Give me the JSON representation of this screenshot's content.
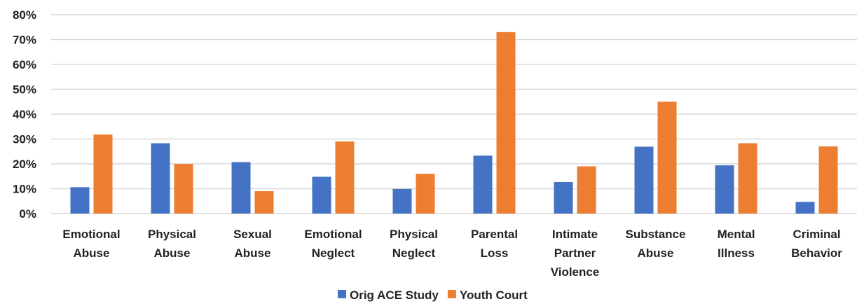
{
  "chart_data": {
    "type": "bar",
    "categories": [
      [
        "Emotional",
        "Abuse"
      ],
      [
        "Physical",
        "Abuse"
      ],
      [
        "Sexual",
        "Abuse"
      ],
      [
        "Emotional",
        "Neglect"
      ],
      [
        "Physical",
        "Neglect"
      ],
      [
        "Parental",
        "Loss"
      ],
      [
        "Intimate",
        "Partner",
        "Violence"
      ],
      [
        "Substance",
        "Abuse"
      ],
      [
        "Mental",
        "Illness"
      ],
      [
        "Criminal",
        "Behavior"
      ]
    ],
    "series": [
      {
        "name": "Orig ACE Study",
        "color": "#4472c4",
        "values": [
          10.6,
          28.3,
          20.7,
          14.8,
          9.9,
          23.3,
          12.7,
          26.9,
          19.4,
          4.7
        ]
      },
      {
        "name": "Youth Court",
        "color": "#ed7d31",
        "values": [
          31.8,
          20.0,
          9.0,
          29.0,
          16.0,
          73.0,
          19.0,
          45.0,
          28.3,
          27.0
        ]
      }
    ],
    "y_ticks": [
      "0%",
      "10%",
      "20%",
      "30%",
      "40%",
      "50%",
      "60%",
      "70%",
      "80%"
    ],
    "ylim": [
      0,
      80
    ],
    "grid": true,
    "legend_position": "bottom"
  }
}
